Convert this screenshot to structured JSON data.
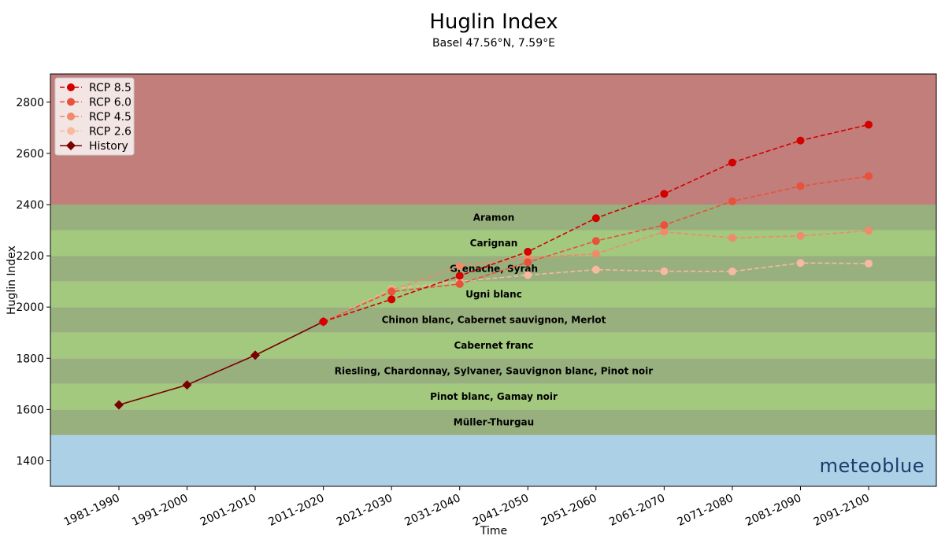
{
  "chart_data": {
    "type": "line",
    "title": "Huglin Index",
    "subtitle": "Basel 47.56°N, 7.59°E",
    "xlabel": "Time",
    "ylabel": "Huglin Index",
    "ylim": [
      1300,
      2910
    ],
    "yticks": [
      1400,
      1600,
      1800,
      2000,
      2200,
      2400,
      2600,
      2800
    ],
    "categories": [
      "1981-1990",
      "1991-2000",
      "2001-2010",
      "2011-2020",
      "2021-2030",
      "2031-2040",
      "2041-2050",
      "2051-2060",
      "2061-2070",
      "2071-2080",
      "2081-2090",
      "2091-2100"
    ],
    "legend_position": "top-left",
    "grid": false,
    "bands": [
      {
        "from": 1300,
        "to": 1500,
        "color": "#acd0e5",
        "label": ""
      },
      {
        "from": 1500,
        "to": 1600,
        "color": "#98b07e",
        "label": "Müller-Thurgau"
      },
      {
        "from": 1600,
        "to": 1700,
        "color": "#a2c97e",
        "label": "Pinot blanc, Gamay noir"
      },
      {
        "from": 1700,
        "to": 1800,
        "color": "#98b07e",
        "label": "Riesling, Chardonnay, Sylvaner, Sauvignon blanc, Pinot noir"
      },
      {
        "from": 1800,
        "to": 1900,
        "color": "#a2c97e",
        "label": "Cabernet franc"
      },
      {
        "from": 1900,
        "to": 2000,
        "color": "#98b07e",
        "label": "Chinon blanc, Cabernet sauvignon, Merlot"
      },
      {
        "from": 2000,
        "to": 2100,
        "color": "#a2c97e",
        "label": "Ugni blanc"
      },
      {
        "from": 2100,
        "to": 2200,
        "color": "#98b07e",
        "label": "Grenache, Syrah"
      },
      {
        "from": 2200,
        "to": 2300,
        "color": "#a2c97e",
        "label": "Carignan"
      },
      {
        "from": 2300,
        "to": 2400,
        "color": "#98b07e",
        "label": "Aramon"
      },
      {
        "from": 2400,
        "to": 2910,
        "color": "#c27e7b",
        "label": ""
      }
    ],
    "series": [
      {
        "name": "RCP 8.5",
        "color": "#d40000",
        "dashed": true,
        "marker": "circle",
        "x": [
          "2011-2020",
          "2021-2030",
          "2031-2040",
          "2041-2050",
          "2051-2060",
          "2061-2070",
          "2071-2080",
          "2081-2090",
          "2091-2100"
        ],
        "values": [
          1943,
          2030,
          2122,
          2216,
          2347,
          2442,
          2564,
          2650,
          2712
        ]
      },
      {
        "name": "RCP 6.0",
        "color": "#e8523a",
        "dashed": true,
        "marker": "circle",
        "x": [
          "2011-2020",
          "2021-2030",
          "2031-2040",
          "2041-2050",
          "2051-2060",
          "2061-2070",
          "2071-2080",
          "2081-2090",
          "2091-2100"
        ],
        "values": [
          1943,
          2060,
          2090,
          2175,
          2258,
          2320,
          2413,
          2472,
          2511
        ]
      },
      {
        "name": "RCP 4.5",
        "color": "#f08a6a",
        "dashed": true,
        "marker": "circle",
        "x": [
          "2011-2020",
          "2021-2030",
          "2031-2040",
          "2041-2050",
          "2051-2060",
          "2061-2070",
          "2071-2080",
          "2081-2090",
          "2091-2100"
        ],
        "values": [
          1943,
          2065,
          2160,
          2192,
          2208,
          2294,
          2270,
          2278,
          2298
        ]
      },
      {
        "name": "RCP 2.6",
        "color": "#f7b9a0",
        "dashed": true,
        "marker": "circle",
        "x": [
          "2011-2020",
          "2021-2030",
          "2031-2040",
          "2041-2050",
          "2051-2060",
          "2061-2070",
          "2071-2080",
          "2081-2090",
          "2091-2100"
        ],
        "values": [
          1943,
          2070,
          2100,
          2125,
          2146,
          2140,
          2139,
          2172,
          2170
        ]
      },
      {
        "name": "History",
        "color": "#7a0000",
        "dashed": false,
        "marker": "diamond",
        "x": [
          "1981-1990",
          "1991-2000",
          "2001-2010",
          "2011-2020"
        ],
        "values": [
          1618,
          1696,
          1812,
          1943
        ]
      }
    ]
  },
  "branding": {
    "logo_text": "meteoblue"
  }
}
